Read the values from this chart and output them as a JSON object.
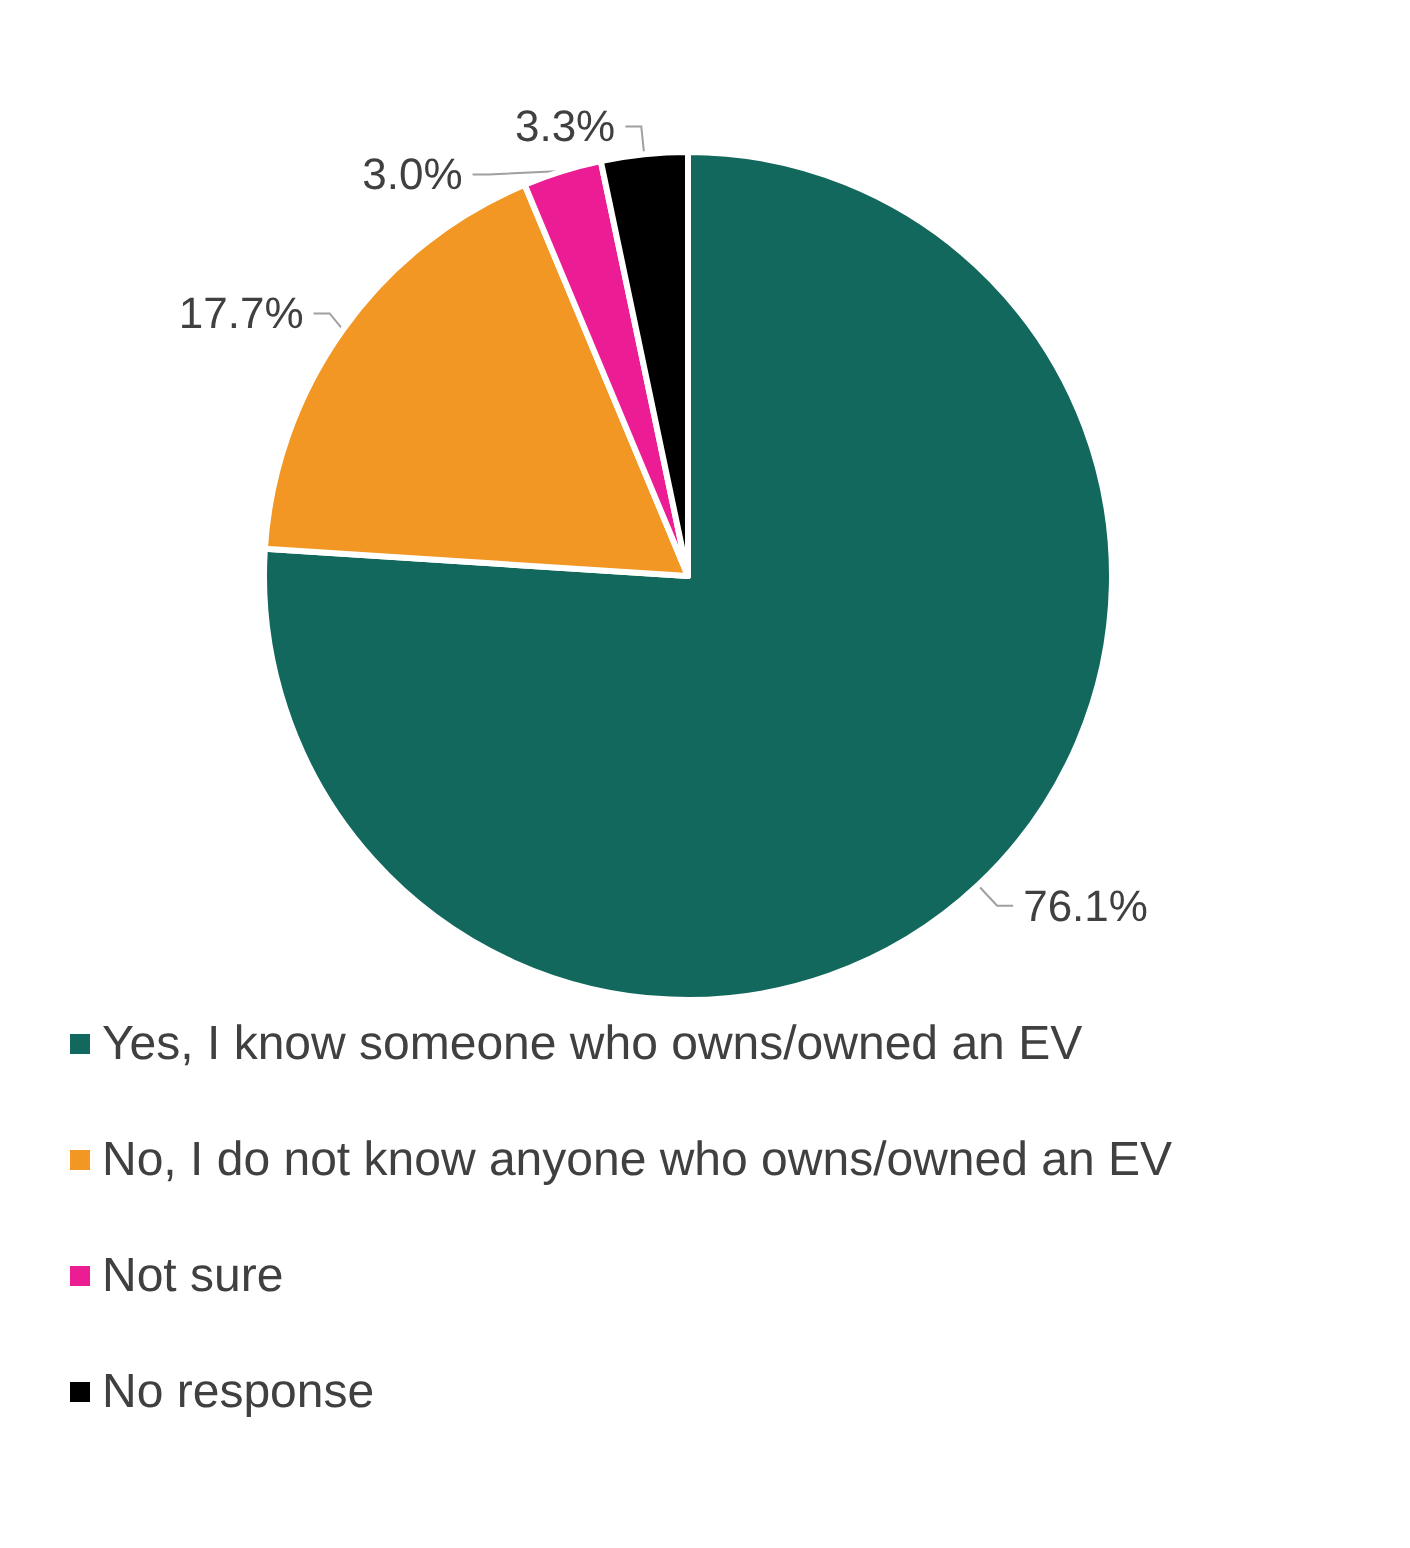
{
  "chart_data": {
    "type": "pie",
    "categories": [
      "Yes, I know someone who owns/owned an EV",
      "No, I do not know anyone who owns/owned an EV",
      "Not sure",
      "No response"
    ],
    "values": [
      76.1,
      17.7,
      3.0,
      3.3
    ],
    "colors": [
      "#12685c",
      "#f29723",
      "#ec1c94",
      "#000000"
    ],
    "value_labels": [
      "76.1%",
      "17.7%",
      "3.0%",
      "3.3%"
    ],
    "legend": "bottom"
  }
}
